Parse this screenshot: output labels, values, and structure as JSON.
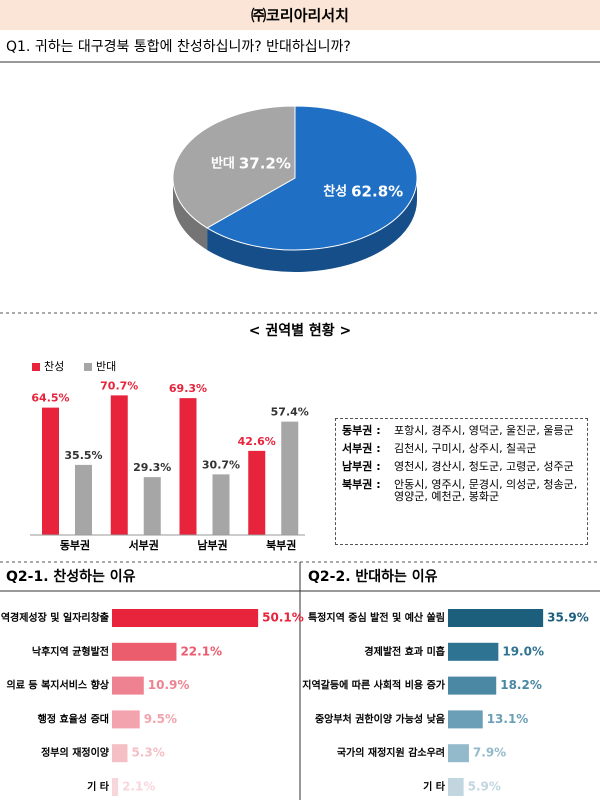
{
  "header": {
    "company": "㈜코리아리서치",
    "question": "Q1. 귀하는 대구경북 통합에 찬성하십니까? 반대하십니까?"
  },
  "chart_data": [
    {
      "type": "pie",
      "categories": [
        "찬성",
        "반대"
      ],
      "values": [
        62.8,
        37.2
      ],
      "value_labels": [
        "62.8%",
        "37.2%"
      ],
      "colors": [
        "#1f6fc5",
        "#a6a6a6"
      ]
    },
    {
      "type": "bar",
      "title": "< 권역별 현황 >",
      "categories": [
        "동부권",
        "서부권",
        "남부권",
        "북부권"
      ],
      "series": [
        {
          "name": "찬성",
          "color": "#e8243c",
          "values": [
            64.5,
            70.7,
            69.3,
            42.6
          ],
          "value_labels": [
            "64.5%",
            "70.7%",
            "69.3%",
            "42.6%"
          ]
        },
        {
          "name": "반대",
          "color": "#a6a6a6",
          "values": [
            35.5,
            29.3,
            30.7,
            57.4
          ],
          "value_labels": [
            "35.5%",
            "29.3%",
            "30.7%",
            "57.4%"
          ]
        }
      ],
      "ylim": [
        0,
        80
      ],
      "legend": "top-left"
    },
    {
      "type": "hbar",
      "title": "Q2-1. 찬성하는 이유",
      "categories": [
        "지역경제성장 및 일자리창출",
        "낙후지역 균형발전",
        "의료 등 복지서비스 향상",
        "행정 효율성 증대",
        "정부의 재정이양",
        "기 타"
      ],
      "values": [
        50.1,
        22.1,
        10.9,
        9.5,
        5.3,
        2.1
      ],
      "value_labels": [
        "50.1%",
        "22.1%",
        "10.9%",
        "9.5%",
        "5.3%",
        "2.1%"
      ],
      "colors": [
        "#e8243c",
        "#eb5c6d",
        "#ef8290",
        "#f2a3ad",
        "#f5bfc6",
        "#f8d7dc"
      ],
      "xlim": [
        0,
        60
      ]
    },
    {
      "type": "hbar",
      "title": "Q2-2. 반대하는 이유",
      "categories": [
        "특정지역 중심 발전 및 예산 쏠림",
        "경제발전 효과 미흡",
        "지역갈등에 따른 사회적 비용 증가",
        "중앙부처 권한이양 가능성 낮음",
        "국가의 재정지원 감소우려",
        "기 타"
      ],
      "values": [
        35.9,
        19.0,
        18.2,
        13.1,
        7.9,
        5.9
      ],
      "value_labels": [
        "35.9%",
        "19.0%",
        "18.2%",
        "13.1%",
        "7.9%",
        "5.9%"
      ],
      "colors": [
        "#1c5f7c",
        "#2f7392",
        "#4a88a4",
        "#6a9fb7",
        "#93bacb",
        "#c2d6e0"
      ],
      "xlim": [
        0,
        60
      ]
    }
  ],
  "region_table": {
    "rows": [
      {
        "name": "동부권 :",
        "areas": "포항시, 경주시, 영덕군, 울진군, 울릉군"
      },
      {
        "name": "서부권 :",
        "areas": "김천시, 구미시, 상주시, 칠곡군"
      },
      {
        "name": "남부권 :",
        "areas": "영천시, 경산시, 청도군, 고령군, 성주군"
      },
      {
        "name": "북부권 :",
        "areas": "안동시, 영주시, 문경시, 의성군, 청송군, 영양군, 예천군, 봉화군"
      }
    ]
  }
}
